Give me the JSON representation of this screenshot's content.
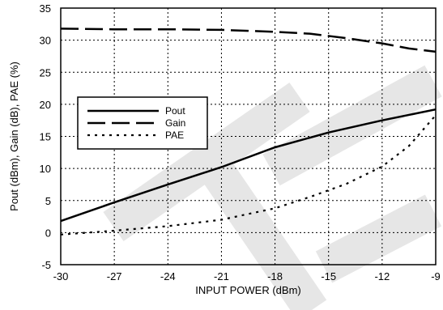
{
  "chart_data": {
    "type": "line",
    "xlabel": "INPUT POWER (dBm)",
    "ylabel": "Pout (dBm), Gain (dB), PAE (%)",
    "xlim": [
      -30,
      -9
    ],
    "ylim": [
      -5,
      35
    ],
    "xticks": [
      -30,
      -27,
      -24,
      -21,
      -18,
      -15,
      -12,
      -9
    ],
    "yticks": [
      -5,
      0,
      5,
      10,
      15,
      20,
      25,
      30,
      35
    ],
    "grid": "dotted",
    "legend_position": "upper-left",
    "watermark": "TE",
    "series": [
      {
        "name": "Pout",
        "style": "solid",
        "color": "#000000",
        "x": [
          -30,
          -27,
          -24,
          -21,
          -18,
          -15,
          -12,
          -9
        ],
        "y": [
          1.8,
          4.7,
          7.5,
          10.2,
          13.3,
          15.6,
          17.5,
          19.2
        ]
      },
      {
        "name": "Gain",
        "style": "dashed",
        "color": "#000000",
        "x": [
          -30,
          -27,
          -24,
          -21,
          -18,
          -16,
          -14,
          -12,
          -10.5,
          -9
        ],
        "y": [
          31.8,
          31.7,
          31.7,
          31.6,
          31.3,
          31.0,
          30.3,
          29.5,
          28.7,
          28.2
        ]
      },
      {
        "name": "PAE",
        "style": "dotted",
        "color": "#000000",
        "x": [
          -30,
          -27,
          -24,
          -21,
          -18,
          -16,
          -14,
          -12,
          -10.5,
          -9
        ],
        "y": [
          -0.3,
          0.3,
          1.0,
          2.0,
          3.8,
          5.6,
          7.6,
          10.3,
          13.5,
          18.3
        ]
      }
    ]
  }
}
